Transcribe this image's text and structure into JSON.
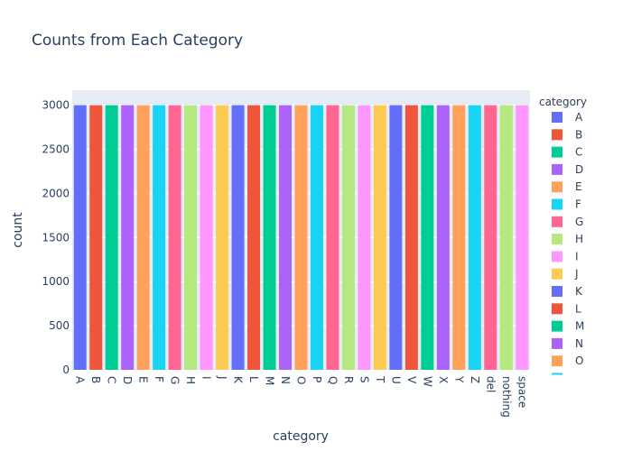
{
  "chart_data": {
    "type": "bar",
    "title": "Counts from Each Category",
    "xlabel": "category",
    "ylabel": "count",
    "ylim": [
      0,
      3170
    ],
    "yticks": [
      0,
      500,
      1000,
      1500,
      2000,
      2500,
      3000
    ],
    "legend_title": "category",
    "legend_placement": "right",
    "categories": [
      "A",
      "B",
      "C",
      "D",
      "E",
      "F",
      "G",
      "H",
      "I",
      "J",
      "K",
      "L",
      "M",
      "N",
      "O",
      "P",
      "Q",
      "R",
      "S",
      "T",
      "U",
      "V",
      "W",
      "X",
      "Y",
      "Z",
      "del",
      "nothing",
      "space"
    ],
    "values": [
      3000,
      3000,
      3000,
      3000,
      3000,
      3000,
      3000,
      3000,
      3000,
      3000,
      3000,
      3000,
      3000,
      3000,
      3000,
      3000,
      3000,
      3000,
      3000,
      3000,
      3000,
      3000,
      3000,
      3000,
      3000,
      3000,
      3000,
      3000,
      3000
    ],
    "colors": [
      "#636efa",
      "#EF553B",
      "#00cc96",
      "#ab63fa",
      "#FFA15A",
      "#19d3f3",
      "#FF6692",
      "#B6E880",
      "#FF97FF",
      "#FECB52"
    ],
    "legend_visible_items": [
      "A",
      "B",
      "C",
      "D",
      "E",
      "F",
      "G",
      "H",
      "I",
      "J",
      "K",
      "L",
      "M",
      "N",
      "O"
    ],
    "grid": true,
    "plot_background": "#e5ecf6"
  }
}
